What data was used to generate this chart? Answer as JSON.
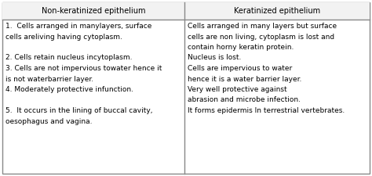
{
  "title_left": "Non-keratinized epithelium",
  "title_right": "Keratinized epithelium",
  "left_lines": [
    "1.  Cells arranged in manylayers, surface",
    "cells areliving having cytoplasm.",
    "",
    "2. Cells retain nucleus incytoplasm.",
    "3. Cells are not impervious towater hence it",
    "is not waterbarrier layer.",
    "4. Moderately protective infunction.",
    "",
    "5.  It occurs in the lining of buccal cavity,",
    "oesophagus and vagina."
  ],
  "right_lines": [
    "Cells arranged in many layers but surface",
    "cells are non living, cytoplasm is lost and",
    "contain horny keratin protein.",
    "Nucleus is lost.",
    "Cells are impervious to water",
    "hence it is a water barrier layer.",
    "Very well protective against",
    "abrasion and microbe infection.",
    "It forms epidermis In terrestrial vertebrates."
  ],
  "bg_color": "#ffffff",
  "header_bg": "#f2f2f2",
  "border_color": "#888888",
  "text_color": "#000000",
  "font_size": 6.5,
  "header_font_size": 7.0
}
